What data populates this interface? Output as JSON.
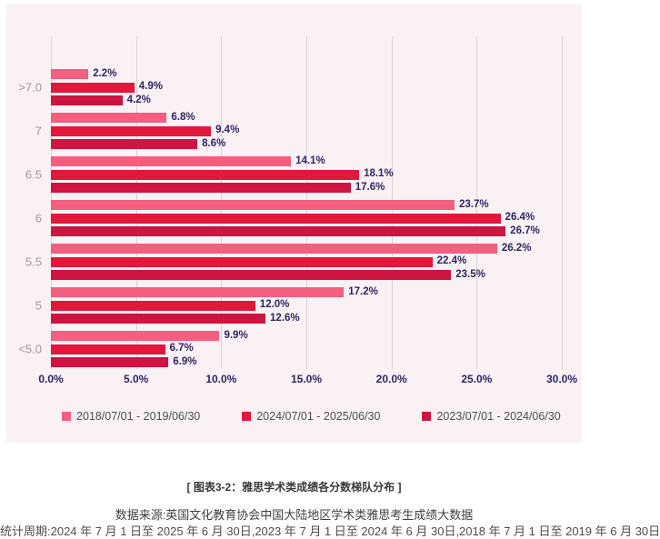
{
  "chart_data": {
    "type": "bar",
    "orientation": "horizontal",
    "categories": [
      ">7.0",
      "7",
      "6.5",
      "6",
      "5.5",
      "5",
      "<5.0"
    ],
    "series": [
      {
        "name": "2018/07/01 - 2019/06/30",
        "color": "#F25F7F",
        "values": [
          2.2,
          6.8,
          14.1,
          23.7,
          26.2,
          17.2,
          9.9
        ]
      },
      {
        "name": "2024/07/01 - 2025/06/30",
        "color": "#E2173C",
        "values": [
          4.9,
          9.4,
          18.1,
          26.4,
          22.4,
          12.0,
          6.7
        ]
      },
      {
        "name": "2023/07/01 - 2024/06/30",
        "color": "#CE1441",
        "values": [
          4.2,
          8.6,
          17.6,
          26.7,
          23.5,
          12.6,
          6.9
        ]
      }
    ],
    "x_ticks": [
      "0.0%",
      "5.0%",
      "10.0%",
      "15.0%",
      "20.0%",
      "25.0%",
      "30.0%"
    ],
    "xlim": [
      0,
      30
    ],
    "grid": true,
    "legend_position": "bottom",
    "value_label_format": "percent_one_decimal"
  },
  "caption": {
    "title": "[ 图表3-2：雅思学术类成绩各分数梯队分布 ]",
    "source": "数据来源:英国文化教育协会中国大陆地区学术类雅思考生成绩大数据",
    "period": "统计周期:2024 年 7 月 1 日至 2025 年 6 月 30日,2023 年 7 月 1 日至 2024 年 6 月 30日,2018 年 7 月 1 日至 2019 年 6 月 30日"
  },
  "colors": {
    "panel_bg": "#FAF1F4",
    "grid_line": "#DBD2D6",
    "data_label": "#2F2566",
    "axis_tick_label": "#2F2566",
    "category_label": "#9E989D",
    "legend_text": "#4E4E4E"
  }
}
